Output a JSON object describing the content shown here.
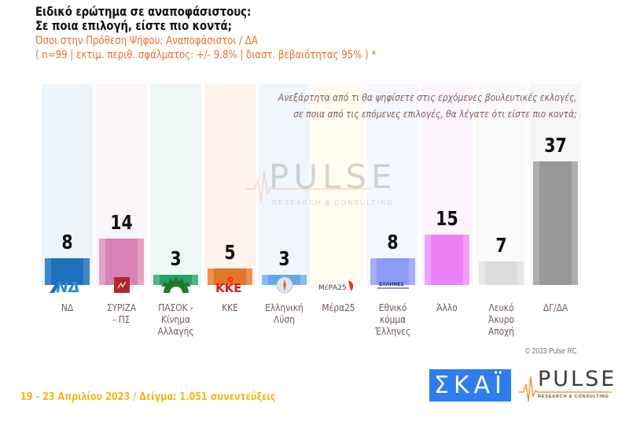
{
  "header": {
    "title_line1": "Ειδικό ερώτημα σε αναποφάσιστους:",
    "title_line2": "Σε ποια επιλογή, είστε πιο κοντά;",
    "subtitle_line1": "Όσοι στην Πρόθεση Ψήφου: Αναποφάσιστοι / ΔΑ",
    "subtitle_line2": "( n=99  |  εκτιμ. περιθ. σφάλματος: +/- 9.8%  |  διαστ. βεβαιότητας 95% ) *"
  },
  "question": {
    "line1": "Ανεξάρτητα από τι θα ψηφίσετε στις ερχόμενες βουλευτικές εκλογές,",
    "line2": "σε ποια από τις επόμενες επιλογές, θα λέγατε ότι είστε πιο κοντά;"
  },
  "chart_data": {
    "type": "bar",
    "title": "Ειδικό ερώτημα σε αναποφάσιστους: Σε ποια επιλογή, είστε πιο κοντά;",
    "xlabel": "",
    "ylabel": "%",
    "ylim": [
      0,
      60
    ],
    "grid": false,
    "legend": "none",
    "categories": [
      "ΝΔ",
      "ΣΥΡΙΖΑ - ΠΣ",
      "ΠΑΣΟΚ - Κίνημα Αλλαγής",
      "ΚΚΕ",
      "Ελληνική Λύση",
      "Μέρα25",
      "Εθνικό κόμμα Έλληνες",
      "Άλλο",
      "Λευκό Άκυρο Αποχή",
      "ΔΓ/ΔΑ"
    ],
    "values": [
      8,
      14,
      3,
      5,
      3,
      0,
      8,
      15,
      7,
      37
    ],
    "value_labels": [
      "8",
      "14",
      "3",
      "5",
      "3",
      "",
      "8",
      "15",
      "7",
      "37"
    ],
    "colors": [
      "#1f6fba",
      "#d987b8",
      "#2ea36d",
      "#e27a2c",
      "#6aaee8",
      "#f4c84a",
      "#8e9cf7",
      "#ea86f6",
      "#dedede",
      "#9a9a9a"
    ]
  },
  "bars": [
    {
      "label_lines": [
        "ΝΔ"
      ],
      "value": "8",
      "bar": "#1f6fba",
      "edge": "#3d86cc",
      "bg": "#edf5fa",
      "logo": "nd-logo"
    },
    {
      "label_lines": [
        "ΣΥΡΙΖΑ",
        "- ΠΣ"
      ],
      "value": "14",
      "bar": "#d783b5",
      "edge": "#e3a2c8",
      "bg": "#fbf4f8",
      "logo": "syriza-logo"
    },
    {
      "label_lines": [
        "ΠΑΣΟΚ -",
        "Κίνημα",
        "Αλλαγής"
      ],
      "value": "3",
      "bar": "#2aa06a",
      "edge": "#4fb585",
      "bg": "#eef7f6",
      "logo": "pasok-logo"
    },
    {
      "label_lines": [
        "ΚΚΕ"
      ],
      "value": "5",
      "bar": "#e07626",
      "edge": "#ea9352",
      "bg": "#fdf2ec",
      "logo": "kke-logo"
    },
    {
      "label_lines": [
        "Ελληνική",
        "Λύση"
      ],
      "value": "3",
      "bar": "#62a9e6",
      "edge": "#86bdee",
      "bg": "#f1f6fc",
      "logo": "elliniki-lysi-logo"
    },
    {
      "label_lines": [
        "Μέρα25"
      ],
      "value": "",
      "bar": "#f4c84a",
      "edge": "#f4c84a",
      "bg": "#fefcf1",
      "logo": "mera25-logo"
    },
    {
      "label_lines": [
        "Εθνικό",
        "κόμμα",
        "Έλληνες"
      ],
      "value": "8",
      "bar": "#8d9bf7",
      "edge": "#a4b0fa",
      "bg": "#f5f7fe",
      "logo": "ellines-logo"
    },
    {
      "label_lines": [
        "Άλλο"
      ],
      "value": "15",
      "bar": "#e982f6",
      "edge": "#efa1f9",
      "bg": "#fcf5fe",
      "logo": ""
    },
    {
      "label_lines": [
        "Λευκό",
        "Άκυρο",
        "Αποχή"
      ],
      "value": "7",
      "bar": "#dcdcdc",
      "edge": "#e6e6e6",
      "bg": "#fafafa",
      "logo": ""
    },
    {
      "label_lines": [
        "ΔΓ/ΔΑ"
      ],
      "value": "37",
      "bar": "#989898",
      "edge": "#aeaeae",
      "bg": "#f6f6f6",
      "logo": ""
    }
  ],
  "watermark": {
    "text": "PULSE",
    "sub": "RESEARCH & CONSULTING"
  },
  "copyright": "© 2023 Pulse RC",
  "footer": "19 - 23  Απριλίου  2023  /  Δείγμα:  1.051 συνεντεύξεις",
  "logos": {
    "skai": "ΣΚΑΪ",
    "pulse": "PULSE",
    "pulse_sub": "RESEARCH & CONSULTING"
  },
  "logo_text": {
    "nd": "ΝΔ",
    "kke": "ΚΚΕ",
    "mera25": "ΜέΡΑ25",
    "ellines": "ΕΛΛΗΝΕΣ"
  }
}
